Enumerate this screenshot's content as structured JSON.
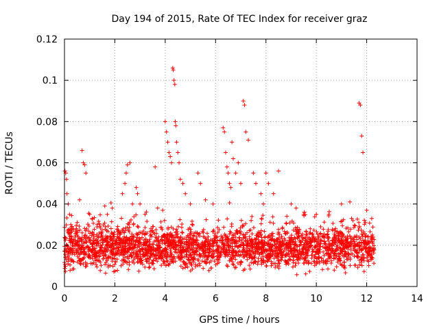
{
  "chart_data": {
    "type": "scatter",
    "title": "Day 194 of 2015, Rate Of TEC Index for receiver graz",
    "xlabel": "GPS time / hours",
    "ylabel": "ROTI / TECUs",
    "xlim": [
      0,
      14
    ],
    "ylim": [
      0,
      0.12
    ],
    "x_ticks": [
      "0",
      "2",
      "4",
      "6",
      "8",
      "10",
      "12",
      "14"
    ],
    "y_ticks": [
      "0",
      "0.02",
      "0.04",
      "0.06",
      "0.08",
      "0.1",
      "0.12"
    ],
    "grid": true,
    "marker": "+",
    "series_color": "#ff0000",
    "series": [
      {
        "name": "ROTI",
        "x": [
          0.02,
          0.05,
          0.08,
          0.1,
          0.15,
          0.2,
          0.25,
          0.3,
          0.7,
          0.75,
          0.8,
          0.85,
          0.6,
          1.0,
          1.1,
          1.3,
          1.6,
          1.7,
          1.9,
          2.3,
          2.4,
          2.45,
          2.5,
          2.6,
          2.7,
          2.85,
          2.9,
          3.0,
          3.2,
          3.6,
          3.7,
          3.9,
          4.0,
          4.05,
          4.1,
          4.15,
          4.2,
          4.25,
          4.3,
          4.32,
          4.35,
          4.38,
          4.4,
          4.42,
          4.45,
          4.5,
          4.55,
          4.6,
          4.7,
          4.8,
          5.0,
          5.3,
          5.4,
          5.6,
          5.9,
          6.3,
          6.35,
          6.4,
          6.45,
          6.5,
          6.55,
          6.6,
          6.65,
          6.7,
          6.8,
          6.9,
          7.0,
          7.1,
          7.15,
          7.2,
          7.3,
          7.5,
          7.6,
          7.8,
          7.9,
          8.0,
          8.1,
          8.3,
          8.5,
          9.0,
          9.2,
          9.5,
          10.0,
          10.5,
          11.0,
          11.4,
          11.7,
          11.75,
          11.8,
          11.85,
          12.0,
          12.2
        ],
        "y": [
          0.056,
          0.055,
          0.052,
          0.045,
          0.04,
          0.035,
          0.03,
          0.028,
          0.066,
          0.06,
          0.059,
          0.055,
          0.042,
          0.035,
          0.033,
          0.03,
          0.039,
          0.035,
          0.038,
          0.045,
          0.05,
          0.055,
          0.059,
          0.06,
          0.04,
          0.048,
          0.045,
          0.04,
          0.035,
          0.058,
          0.038,
          0.037,
          0.08,
          0.075,
          0.07,
          0.065,
          0.063,
          0.06,
          0.106,
          0.105,
          0.1,
          0.098,
          0.08,
          0.078,
          0.07,
          0.065,
          0.06,
          0.052,
          0.05,
          0.045,
          0.04,
          0.055,
          0.05,
          0.042,
          0.04,
          0.077,
          0.075,
          0.065,
          0.058,
          0.055,
          0.05,
          0.048,
          0.07,
          0.062,
          0.055,
          0.06,
          0.05,
          0.09,
          0.088,
          0.075,
          0.071,
          0.055,
          0.05,
          0.045,
          0.04,
          0.055,
          0.05,
          0.045,
          0.056,
          0.04,
          0.038,
          0.035,
          0.035,
          0.035,
          0.04,
          0.033,
          0.089,
          0.088,
          0.073,
          0.065,
          0.037,
          0.033
        ]
      }
    ]
  }
}
